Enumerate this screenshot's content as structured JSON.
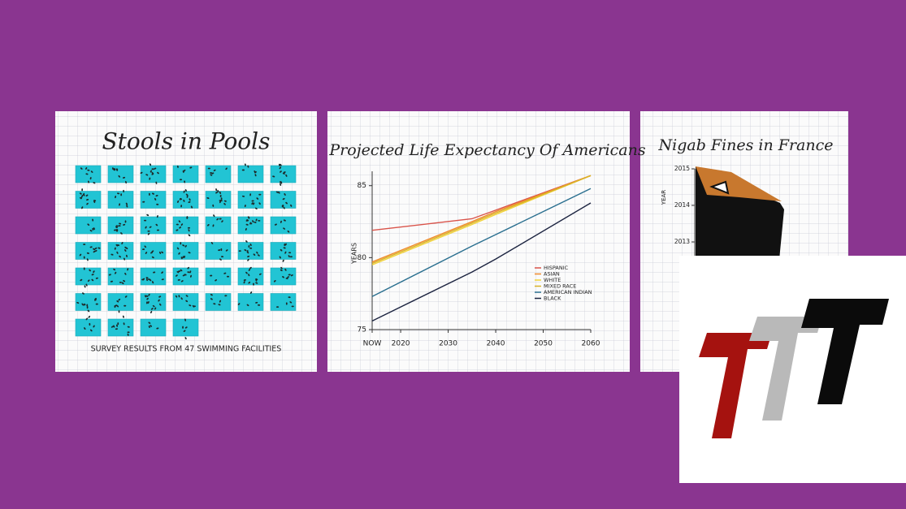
{
  "chart_data": [
    {
      "type": "waffle",
      "title": "Stools in Pools",
      "subtitle": "SURVEY RESULTS FROM 47 SWIMMING FACILITIES",
      "color": "#22c4d4"
    },
    {
      "type": "line",
      "title": "Projected Life Expectancy Of Americans",
      "y_label": "YEARS",
      "x": [
        2014,
        2035,
        2040,
        2060
      ],
      "xlim": [
        2014,
        2060
      ],
      "xticks": [
        {
          "value": 2014,
          "label": "NOW"
        },
        2020,
        2030,
        2040,
        2050,
        2060
      ],
      "ylim": [
        75,
        86
      ],
      "yticks": [
        75,
        80,
        85
      ],
      "series": [
        {
          "name": "HISPANIC",
          "color": "#d9534a",
          "values": [
            81.9,
            82.7,
            83.3,
            85.7
          ]
        },
        {
          "name": "ASIAN",
          "color": "#f08a2c",
          "values": [
            79.7,
            82.5,
            83.2,
            85.7
          ]
        },
        {
          "name": "WHITE",
          "color": "#f2d33a",
          "values": [
            79.5,
            82.3,
            83.0,
            85.7
          ]
        },
        {
          "name": "MIXED RACE",
          "color": "#d9b228",
          "values": [
            79.6,
            82.4,
            83.1,
            85.7
          ]
        },
        {
          "name": "AMERICAN INDIAN",
          "color": "#2a6f8f",
          "values": [
            77.3,
            80.8,
            81.6,
            84.8
          ]
        },
        {
          "name": "BLACK",
          "color": "#1c2440",
          "values": [
            75.6,
            79.0,
            79.9,
            83.8
          ]
        }
      ]
    },
    {
      "type": "pictogram",
      "title": "Nigab Fines in France",
      "y_label": "YEAR",
      "ylim": [
        2012,
        2015
      ],
      "yticks": [
        2013,
        2014,
        2015
      ]
    }
  ]
}
